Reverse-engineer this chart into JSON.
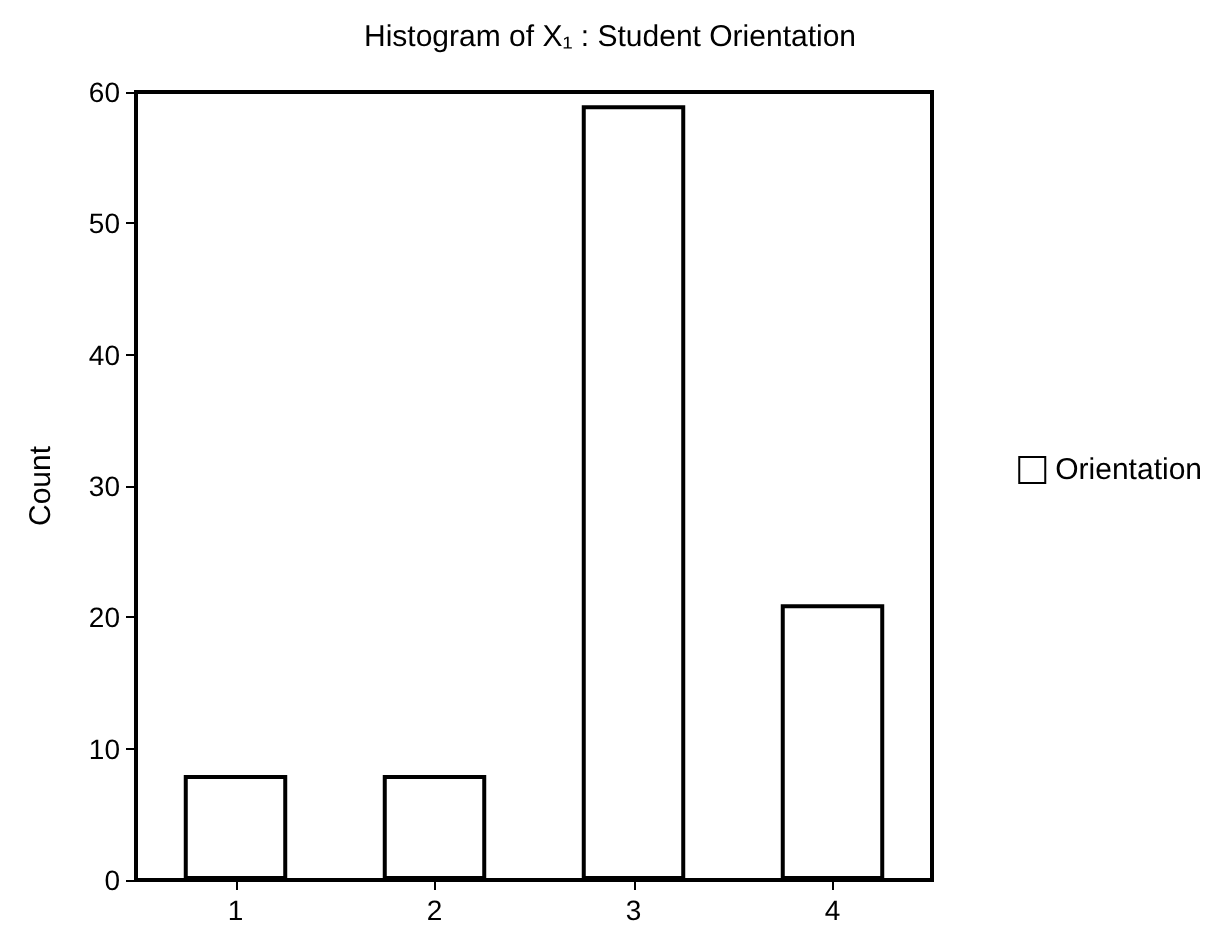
{
  "chart_data": {
    "type": "bar",
    "title": "Histogram of X₁ : Student Orientation",
    "ylabel": "Count",
    "categories": [
      "1",
      "2",
      "3",
      "4"
    ],
    "series": [
      {
        "name": "Orientation",
        "color": "#ffffff",
        "values": [
          8,
          8,
          59,
          21
        ]
      }
    ],
    "ylim": [
      0,
      60
    ],
    "yticks": [
      0,
      10,
      20,
      30,
      40,
      50,
      60
    ],
    "grid": false,
    "legend": "right"
  }
}
